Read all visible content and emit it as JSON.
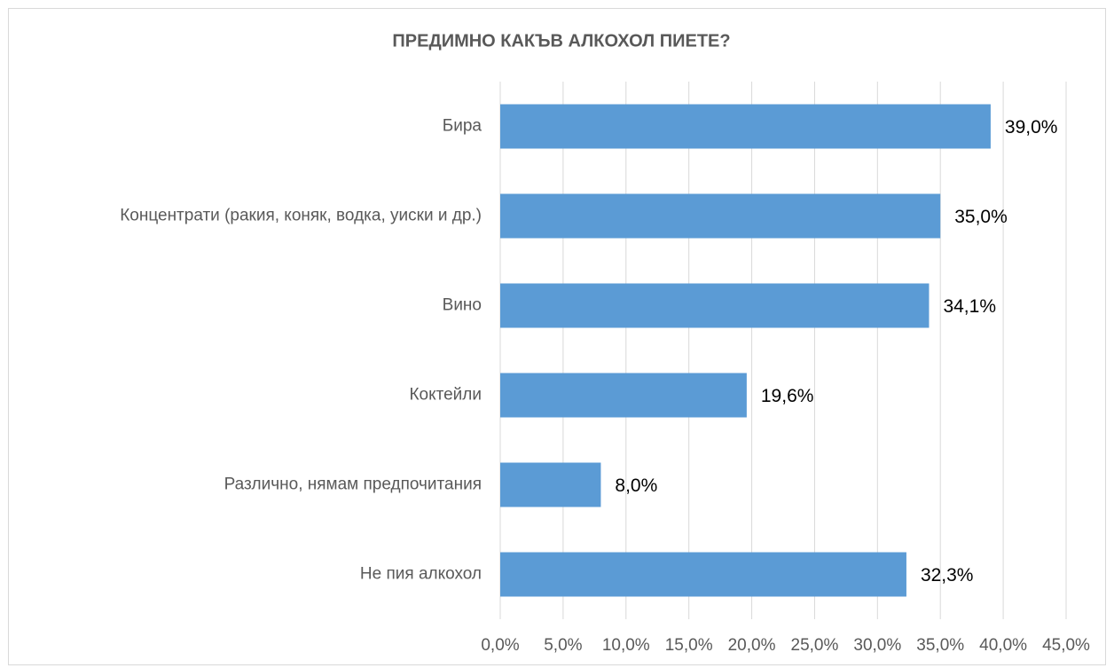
{
  "chart_data": {
    "type": "hbar",
    "title": "ПРЕДИМНО КАКЪВ АЛКОХОЛ ПИЕТЕ?",
    "categories": [
      "Бира",
      "Концентрати (ракия, коняк, водка, уиски и др.)",
      "Вино",
      "Коктейли",
      "Различно, нямам предпочитания",
      "Не пия алкохол"
    ],
    "values": [
      39.0,
      35.0,
      34.1,
      19.6,
      8.0,
      32.3
    ],
    "value_labels": [
      "39,0%",
      "35,0%",
      "34,1%",
      "19,6%",
      "8,0%",
      "32,3%"
    ],
    "color": "#5b9bd5",
    "xlim": [
      0,
      45
    ],
    "xticks": [
      {
        "value": 0,
        "label": "0,0%"
      },
      {
        "value": 5,
        "label": "5,0%"
      },
      {
        "value": 10,
        "label": "10,0%"
      },
      {
        "value": 15,
        "label": "15,0%"
      },
      {
        "value": 20,
        "label": "20,0%"
      },
      {
        "value": 25,
        "label": "25,0%"
      },
      {
        "value": 30,
        "label": "30,0%"
      },
      {
        "value": 35,
        "label": "35,0%"
      },
      {
        "value": 40,
        "label": "40,0%"
      },
      {
        "value": 45,
        "label": "45,0%"
      }
    ],
    "grid": true
  }
}
